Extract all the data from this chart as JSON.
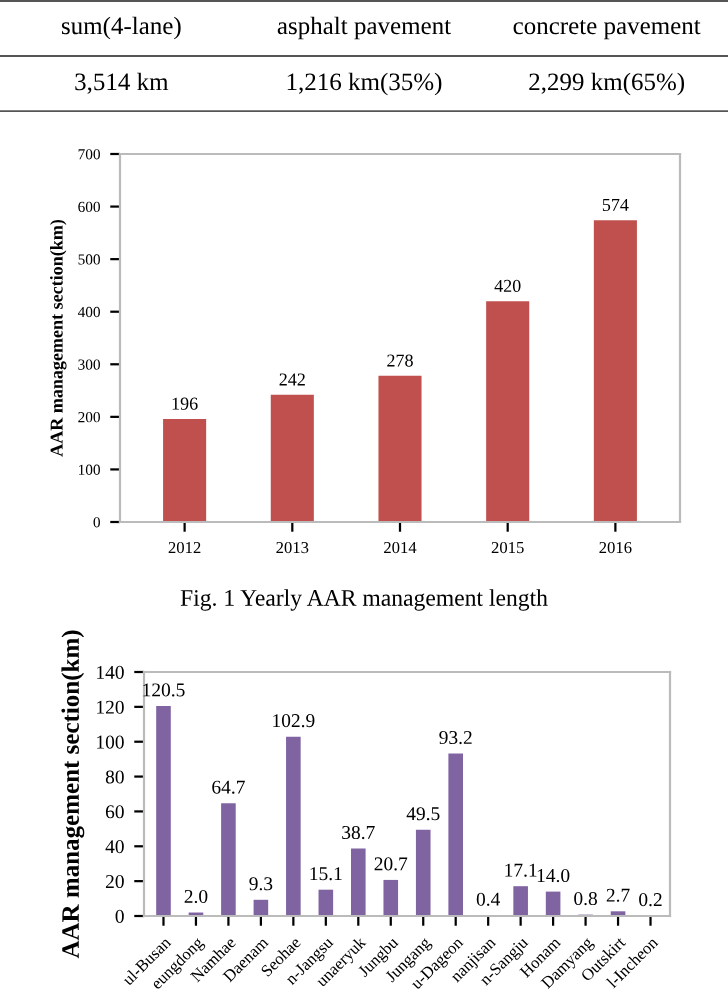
{
  "chart_data": [
    {
      "type": "other",
      "annotations": [
        "sum(4-lane)",
        "asphalt pavement",
        "concrete pavement",
        "3,514 km",
        "1,216 km(35%)",
        "2,299 km(65%)"
      ]
    },
    {
      "type": "bar",
      "categories": [
        "2012",
        "2013",
        "2014",
        "2015",
        "2016"
      ],
      "values": [
        196,
        242,
        278,
        420,
        574
      ],
      "color": "#c0504d",
      "ylabel": "AAR management section(km)",
      "ylim": [
        0,
        700
      ],
      "yticks": [
        0,
        100,
        200,
        300,
        400,
        500,
        600,
        700
      ],
      "data_labels": true,
      "annotations": [
        "Fig. 1 Yearly AAR management length"
      ]
    },
    {
      "type": "bar",
      "categories": [
        "ul-Busan",
        "eungdong",
        "Namhae",
        "Daenam",
        "Seohae",
        "n-Jangsu",
        "unaeryuk",
        "Jungbu",
        "Jungang",
        "u-Dageon",
        "nanjisan",
        "n-Sangju",
        "Honam",
        "Damyang",
        "Outskirt",
        "l-Incheon"
      ],
      "values": [
        120.5,
        2.0,
        64.7,
        9.3,
        102.9,
        15.1,
        38.7,
        20.7,
        49.5,
        93.2,
        0.4,
        17.1,
        14.0,
        0.8,
        2.7,
        0.2
      ],
      "value_labels": [
        "120.5",
        "2.0",
        "64.7",
        "9.3",
        "102.9",
        "15.1",
        "38.7",
        "20.7",
        "49.5",
        "93.2",
        "0.4",
        "17.1",
        "14.0",
        "0.8",
        "2.7",
        "0.2"
      ],
      "color": "#8064a2",
      "ylabel": "AAR management section(km)",
      "ylim": [
        0,
        140
      ],
      "yticks": [
        0,
        20,
        40,
        60,
        80,
        100,
        120,
        140
      ]
    }
  ]
}
